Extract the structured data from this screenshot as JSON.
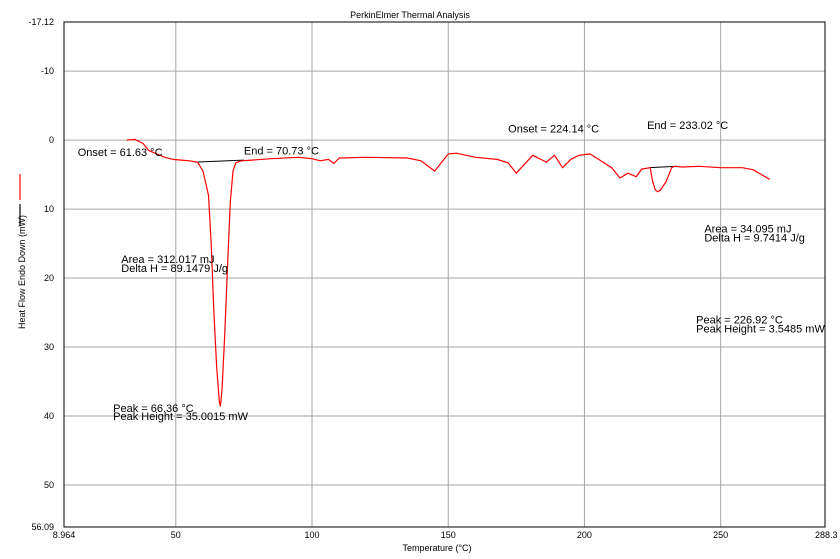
{
  "chart_data": {
    "type": "line",
    "title": "PerkinElmer Thermal Analysis",
    "xlabel": "Temperature (°C)",
    "ylabel": "Heat Flow Endo Down (mW)",
    "xlim": [
      8.964,
      288.3
    ],
    "ylim": [
      -17.12,
      56.09
    ],
    "y_inverted": true,
    "grid": true,
    "x_ticks": [
      {
        "value": 8.964,
        "label": "8.964"
      },
      {
        "value": 50,
        "label": "50"
      },
      {
        "value": 100,
        "label": "100"
      },
      {
        "value": 150,
        "label": "150"
      },
      {
        "value": 200,
        "label": "200"
      },
      {
        "value": 250,
        "label": "250"
      },
      {
        "value": 288.3,
        "label": "288.3"
      }
    ],
    "y_ticks": [
      {
        "value": -17.12,
        "label": "-17.12"
      },
      {
        "value": -10,
        "label": "-10"
      },
      {
        "value": 0,
        "label": "0"
      },
      {
        "value": 10,
        "label": "10"
      },
      {
        "value": 20,
        "label": "20"
      },
      {
        "value": 30,
        "label": "30"
      },
      {
        "value": 40,
        "label": "40"
      },
      {
        "value": 50,
        "label": "50"
      },
      {
        "value": 56.09,
        "label": "56.09"
      }
    ],
    "series": [
      {
        "color": "#ff0000",
        "points": [
          [
            32,
            0.0
          ],
          [
            35,
            -0.1
          ],
          [
            38,
            0.5
          ],
          [
            40,
            1.5
          ],
          [
            43,
            2.0
          ],
          [
            46,
            2.5
          ],
          [
            49,
            2.8
          ],
          [
            52,
            2.9
          ],
          [
            55,
            3.0
          ],
          [
            58,
            3.2
          ],
          [
            60,
            4.5
          ],
          [
            62,
            8.0
          ],
          [
            63,
            15.0
          ],
          [
            64,
            25.0
          ],
          [
            65,
            33.0
          ],
          [
            66,
            38.0
          ],
          [
            66.36,
            38.6
          ],
          [
            67,
            36.0
          ],
          [
            68,
            28.0
          ],
          [
            69,
            18.0
          ],
          [
            70,
            9.0
          ],
          [
            71,
            4.5
          ],
          [
            72,
            3.3
          ],
          [
            74,
            3.0
          ],
          [
            78,
            2.9
          ],
          [
            85,
            2.7
          ],
          [
            95,
            2.5
          ],
          [
            100,
            2.7
          ],
          [
            103,
            3.0
          ],
          [
            106,
            2.8
          ],
          [
            108,
            3.4
          ],
          [
            110,
            2.6
          ],
          [
            120,
            2.5
          ],
          [
            135,
            2.6
          ],
          [
            140,
            3.0
          ],
          [
            143,
            3.9
          ],
          [
            145,
            4.5
          ],
          [
            147,
            3.5
          ],
          [
            150,
            2.0
          ],
          [
            153,
            1.9
          ],
          [
            160,
            2.5
          ],
          [
            168,
            2.8
          ],
          [
            172,
            3.3
          ],
          [
            175,
            4.8
          ],
          [
            178,
            3.5
          ],
          [
            181,
            2.2
          ],
          [
            184,
            2.8
          ],
          [
            186,
            3.2
          ],
          [
            189,
            2.2
          ],
          [
            192,
            4.0
          ],
          [
            195,
            2.8
          ],
          [
            198,
            2.2
          ],
          [
            202,
            2.0
          ],
          [
            206,
            3.0
          ],
          [
            210,
            4.0
          ],
          [
            213,
            5.5
          ],
          [
            216,
            4.8
          ],
          [
            219,
            5.3
          ],
          [
            221,
            4.2
          ],
          [
            224.14,
            4.0
          ],
          [
            225,
            6.0
          ],
          [
            226,
            7.2
          ],
          [
            226.92,
            7.5
          ],
          [
            228,
            7.2
          ],
          [
            230,
            6.0
          ],
          [
            232,
            4.0
          ],
          [
            233.02,
            3.8
          ],
          [
            236,
            3.9
          ],
          [
            242,
            3.8
          ],
          [
            250,
            4.0
          ],
          [
            258,
            4.0
          ],
          [
            262,
            4.3
          ],
          [
            265,
            5.0
          ],
          [
            268,
            5.7
          ]
        ]
      }
    ],
    "baseline_segments": [
      {
        "x": [
          57,
          75
        ],
        "y": [
          3.2,
          2.9
        ]
      },
      {
        "x": [
          224,
          234
        ],
        "y": [
          4.0,
          3.8
        ]
      }
    ],
    "annotations": [
      {
        "text": "Onset = 61.63 °C",
        "x": 14,
        "y": 2.3
      },
      {
        "text": "End = 70.73 °C",
        "x": 75,
        "y": 2.1
      },
      {
        "text": "Area = 312.017 mJ",
        "x": 30,
        "y": 17.8
      },
      {
        "text": "Delta H = 89.1479 J/g",
        "x": 30,
        "y": 19.1
      },
      {
        "text": "Peak = 66.36 °C",
        "x": 27,
        "y": 39.4
      },
      {
        "text": "Peak Height = 35.0015 mW",
        "x": 27,
        "y": 40.6
      },
      {
        "text": "Onset = 224.14 °C",
        "x": 172,
        "y": -1.1
      },
      {
        "text": "End = 233.02 °C",
        "x": 223,
        "y": -1.6
      },
      {
        "text": "Area = 34.095 mJ",
        "x": 244,
        "y": 13.4
      },
      {
        "text": "Delta H = 9.7414 J/g",
        "x": 244,
        "y": 14.7
      },
      {
        "text": "Peak = 226.92 °C",
        "x": 241,
        "y": 26.6
      },
      {
        "text": "Peak Height = 3.5485 mW",
        "x": 241,
        "y": 27.9
      }
    ]
  }
}
